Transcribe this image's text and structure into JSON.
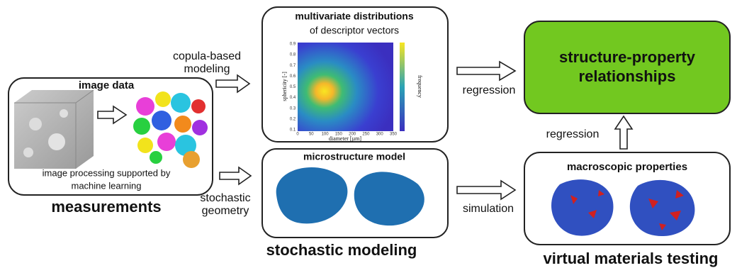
{
  "measurements": {
    "box_title": "image data",
    "caption": [
      "image processing supported by",
      "machine learning"
    ],
    "label": "measurements"
  },
  "edges": {
    "copula": [
      "copula-based",
      "modeling"
    ],
    "stochastic_geometry": [
      "stochastic",
      "geometry"
    ],
    "regression_top": "regression",
    "regression_up": "regression",
    "simulation": "simulation"
  },
  "distributions": {
    "title": "multivariate distributions",
    "subtitle": "of descriptor vectors",
    "x_label": "diameter [µm]",
    "y_label": "sphericity [-]",
    "colorbar_label": "frequency",
    "xticks": [
      "0",
      "50",
      "100",
      "150",
      "200",
      "250",
      "300",
      "350"
    ],
    "yticks": [
      "0.1",
      "0.2",
      "0.3",
      "0.4",
      "0.5",
      "0.6",
      "0.7",
      "0.8",
      "0.9"
    ]
  },
  "model": {
    "title": "microstructure model",
    "label": "stochastic modeling"
  },
  "result": {
    "lines": [
      "structure-property",
      "relationships"
    ]
  },
  "properties": {
    "title": "macroscopic properties",
    "label": "virtual materials testing"
  }
}
